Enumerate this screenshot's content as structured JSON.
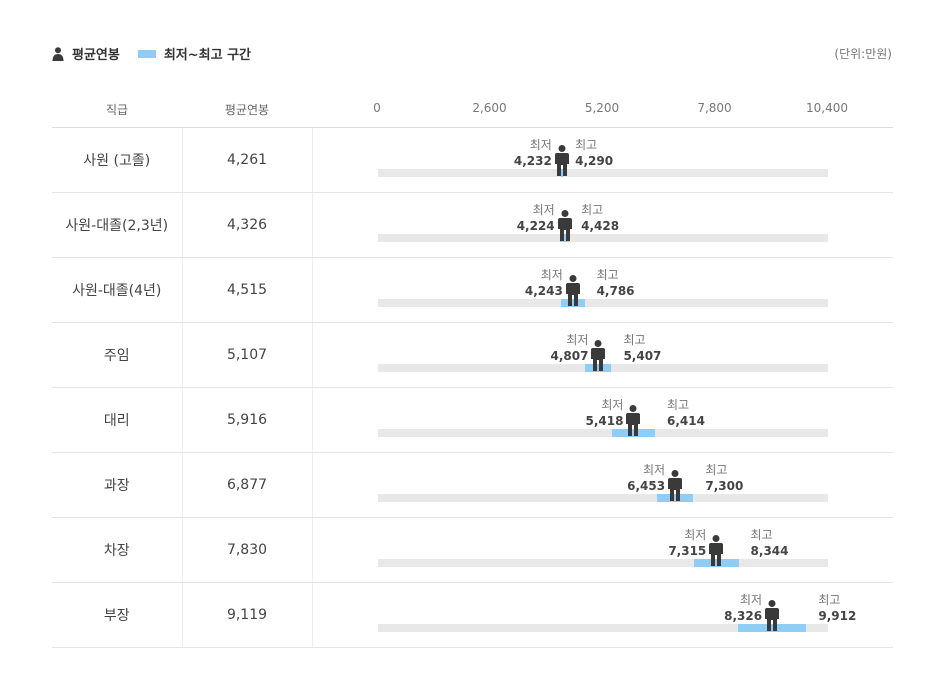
{
  "legend": {
    "avg_label": "평균연봉",
    "range_label": "최저~최고 구간"
  },
  "unit": "(단위:만원)",
  "headers": {
    "title": "직급",
    "avg": "평균연봉"
  },
  "colors": {
    "range": "#8fcdf5",
    "track": "#e8e8e8",
    "person": "#3a3a3a"
  },
  "labels": {
    "min": "최저",
    "max": "최고"
  },
  "chart_data": {
    "type": "range",
    "xlim": [
      0,
      10400
    ],
    "ticks": [
      "0",
      "2,600",
      "5,200",
      "7,800",
      "10,400"
    ],
    "rows": [
      {
        "title": "사원 (고졸)",
        "avg": "4,261",
        "avg_value": 4261,
        "min": "4,232",
        "min_value": 4232,
        "max": "4,290",
        "max_value": 4290
      },
      {
        "title": "사원-대졸(2,3년)",
        "avg": "4,326",
        "avg_value": 4326,
        "min": "4,224",
        "min_value": 4224,
        "max": "4,428",
        "max_value": 4428
      },
      {
        "title": "사원-대졸(4년)",
        "avg": "4,515",
        "avg_value": 4515,
        "min": "4,243",
        "min_value": 4243,
        "max": "4,786",
        "max_value": 4786
      },
      {
        "title": "주임",
        "avg": "5,107",
        "avg_value": 5107,
        "min": "4,807",
        "min_value": 4807,
        "max": "5,407",
        "max_value": 5407
      },
      {
        "title": "대리",
        "avg": "5,916",
        "avg_value": 5916,
        "min": "5,418",
        "min_value": 5418,
        "max": "6,414",
        "max_value": 6414
      },
      {
        "title": "과장",
        "avg": "6,877",
        "avg_value": 6877,
        "min": "6,453",
        "min_value": 6453,
        "max": "7,300",
        "max_value": 7300
      },
      {
        "title": "차장",
        "avg": "7,830",
        "avg_value": 7830,
        "min": "7,315",
        "min_value": 7315,
        "max": "8,344",
        "max_value": 8344
      },
      {
        "title": "부장",
        "avg": "9,119",
        "avg_value": 9119,
        "min": "8,326",
        "min_value": 8326,
        "max": "9,912",
        "max_value": 9912
      }
    ]
  }
}
